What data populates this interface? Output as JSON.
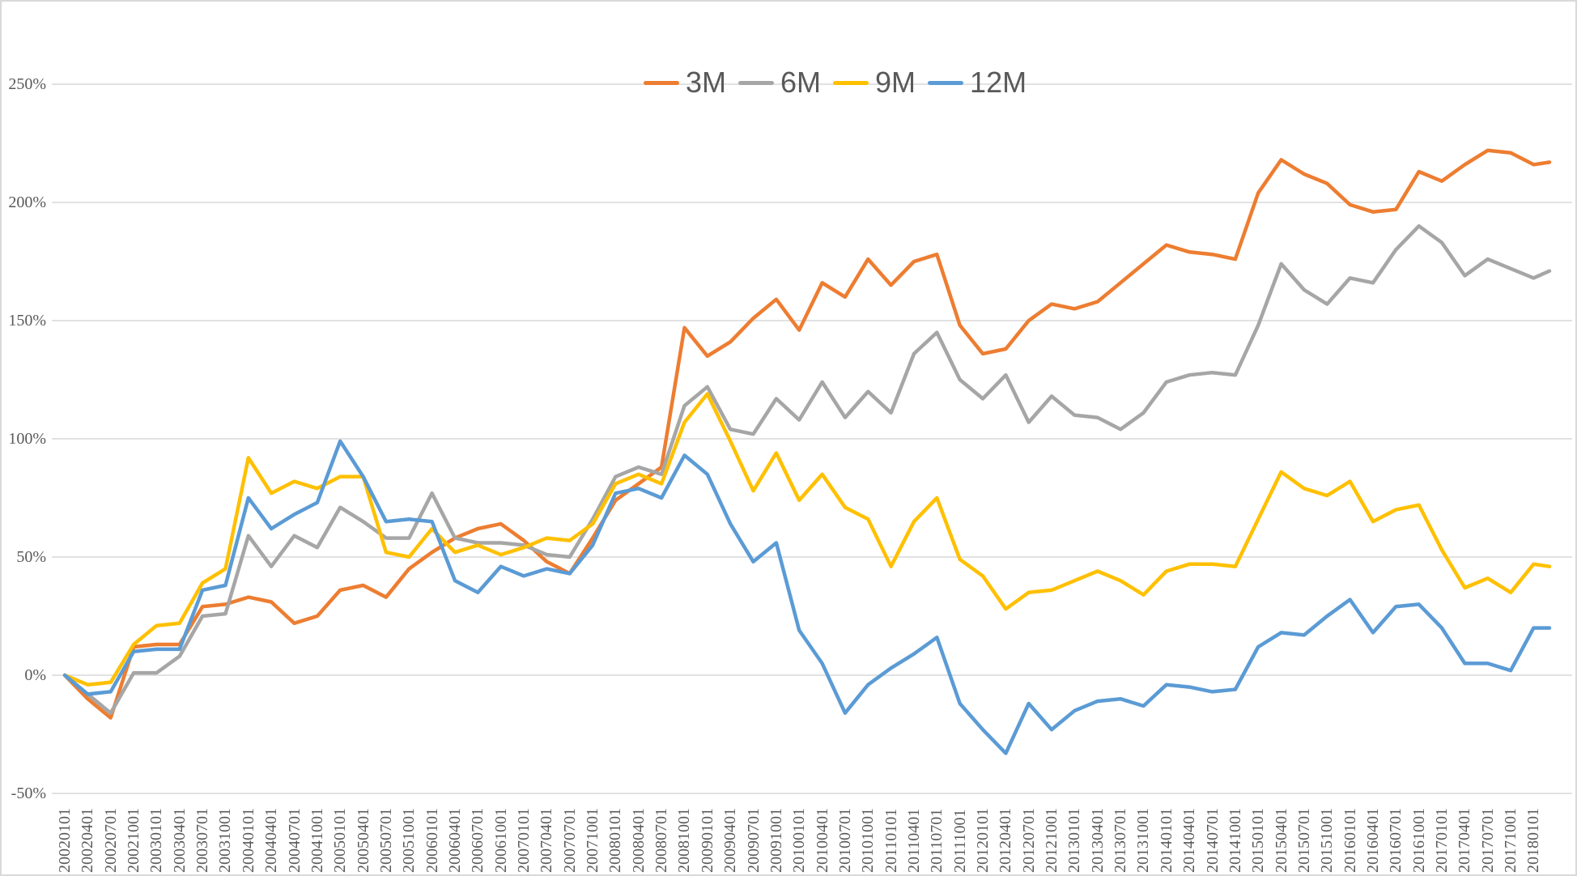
{
  "chart_data": {
    "type": "line",
    "title": "",
    "categories": [
      "20020101",
      "20020401",
      "20020701",
      "20021001",
      "20030101",
      "20030401",
      "20030701",
      "20031001",
      "20040101",
      "20040401",
      "20040701",
      "20041001",
      "20050101",
      "20050401",
      "20050701",
      "20051001",
      "20060101",
      "20060401",
      "20060701",
      "20061001",
      "20070101",
      "20070401",
      "20070701",
      "20071001",
      "20080101",
      "20080401",
      "20080701",
      "20081001",
      "20090101",
      "20090401",
      "20090701",
      "20091001",
      "20100101",
      "20100401",
      "20100701",
      "20101001",
      "20110101",
      "20110401",
      "20110701",
      "20111001",
      "20120101",
      "20120401",
      "20120701",
      "20121001",
      "20130101",
      "20130401",
      "20130701",
      "20131001",
      "20140101",
      "20140401",
      "20140701",
      "20141001",
      "20150101",
      "20150401",
      "20150701",
      "20151001",
      "20160101",
      "20160401",
      "20160701",
      "20161001",
      "20170101",
      "20170401",
      "20170701",
      "20171001",
      "20180101"
    ],
    "series": [
      {
        "name": "3M",
        "color": "#ED7D31",
        "values": [
          0,
          -10,
          -18,
          12,
          13,
          13,
          29,
          30,
          33,
          31,
          22,
          25,
          36,
          38,
          33,
          45,
          52,
          58,
          62,
          64,
          57,
          48,
          43,
          58,
          74,
          81,
          88,
          147,
          135,
          141,
          151,
          159,
          146,
          166,
          160,
          176,
          165,
          175,
          178,
          148,
          136,
          138,
          150,
          157,
          155,
          158,
          166,
          174,
          182,
          179,
          178,
          176,
          204,
          218,
          212,
          208,
          199,
          196,
          197,
          213,
          209,
          216,
          222,
          221,
          216
        ],
        "end_value": 217
      },
      {
        "name": "6M",
        "color": "#A6A6A6",
        "values": [
          0,
          -8,
          -16,
          1,
          1,
          8,
          25,
          26,
          59,
          46,
          59,
          54,
          71,
          65,
          58,
          58,
          77,
          58,
          56,
          56,
          55,
          51,
          50,
          66,
          84,
          88,
          85,
          114,
          122,
          104,
          102,
          117,
          108,
          124,
          109,
          120,
          111,
          136,
          145,
          125,
          117,
          127,
          107,
          118,
          110,
          109,
          104,
          111,
          124,
          127,
          128,
          127,
          148,
          174,
          163,
          157,
          168,
          166,
          180,
          190,
          183,
          169,
          176,
          172,
          168
        ],
        "end_value": 171
      },
      {
        "name": "9M",
        "color": "#FFC000",
        "values": [
          0,
          -4,
          -3,
          13,
          21,
          22,
          39,
          45,
          92,
          77,
          82,
          79,
          84,
          84,
          52,
          50,
          62,
          52,
          55,
          51,
          54,
          58,
          57,
          64,
          81,
          85,
          81,
          107,
          119,
          99,
          78,
          94,
          74,
          85,
          71,
          66,
          46,
          65,
          75,
          49,
          42,
          28,
          35,
          36,
          40,
          44,
          40,
          34,
          44,
          47,
          47,
          46,
          66,
          86,
          79,
          76,
          82,
          65,
          70,
          72,
          53,
          37,
          41,
          35,
          47
        ],
        "end_value": 46
      },
      {
        "name": "12M",
        "color": "#5B9BD5",
        "values": [
          0,
          -8,
          -7,
          10,
          11,
          11,
          36,
          38,
          75,
          62,
          68,
          73,
          99,
          84,
          65,
          66,
          65,
          40,
          35,
          46,
          42,
          45,
          43,
          55,
          77,
          79,
          75,
          93,
          85,
          64,
          48,
          56,
          19,
          5,
          -16,
          -4,
          3,
          9,
          16,
          -12,
          -23,
          -33,
          -12,
          -23,
          -15,
          -11,
          -10,
          -13,
          -4,
          -5,
          -7,
          -6,
          12,
          18,
          17,
          25,
          32,
          18,
          29,
          30,
          20,
          5,
          5,
          2,
          20
        ],
        "end_value": 20
      }
    ],
    "y_axis": {
      "tick_labels": [
        "250%",
        "200%",
        "150%",
        "100%",
        "50%",
        "0%",
        "-50%"
      ],
      "tick_values": [
        250,
        200,
        150,
        100,
        50,
        0,
        -50
      ],
      "ylim": [
        -50,
        250
      ],
      "grid": true
    },
    "x_axis": {
      "label_rotation": -90
    },
    "legend": {
      "position": "top-center",
      "entries": [
        "3M",
        "6M",
        "9M",
        "12M"
      ]
    }
  },
  "colors": {
    "grid": "#D9D9D9",
    "axis_text": "#595959",
    "background": "#FFFFFF",
    "border": "#D9D9D9"
  }
}
